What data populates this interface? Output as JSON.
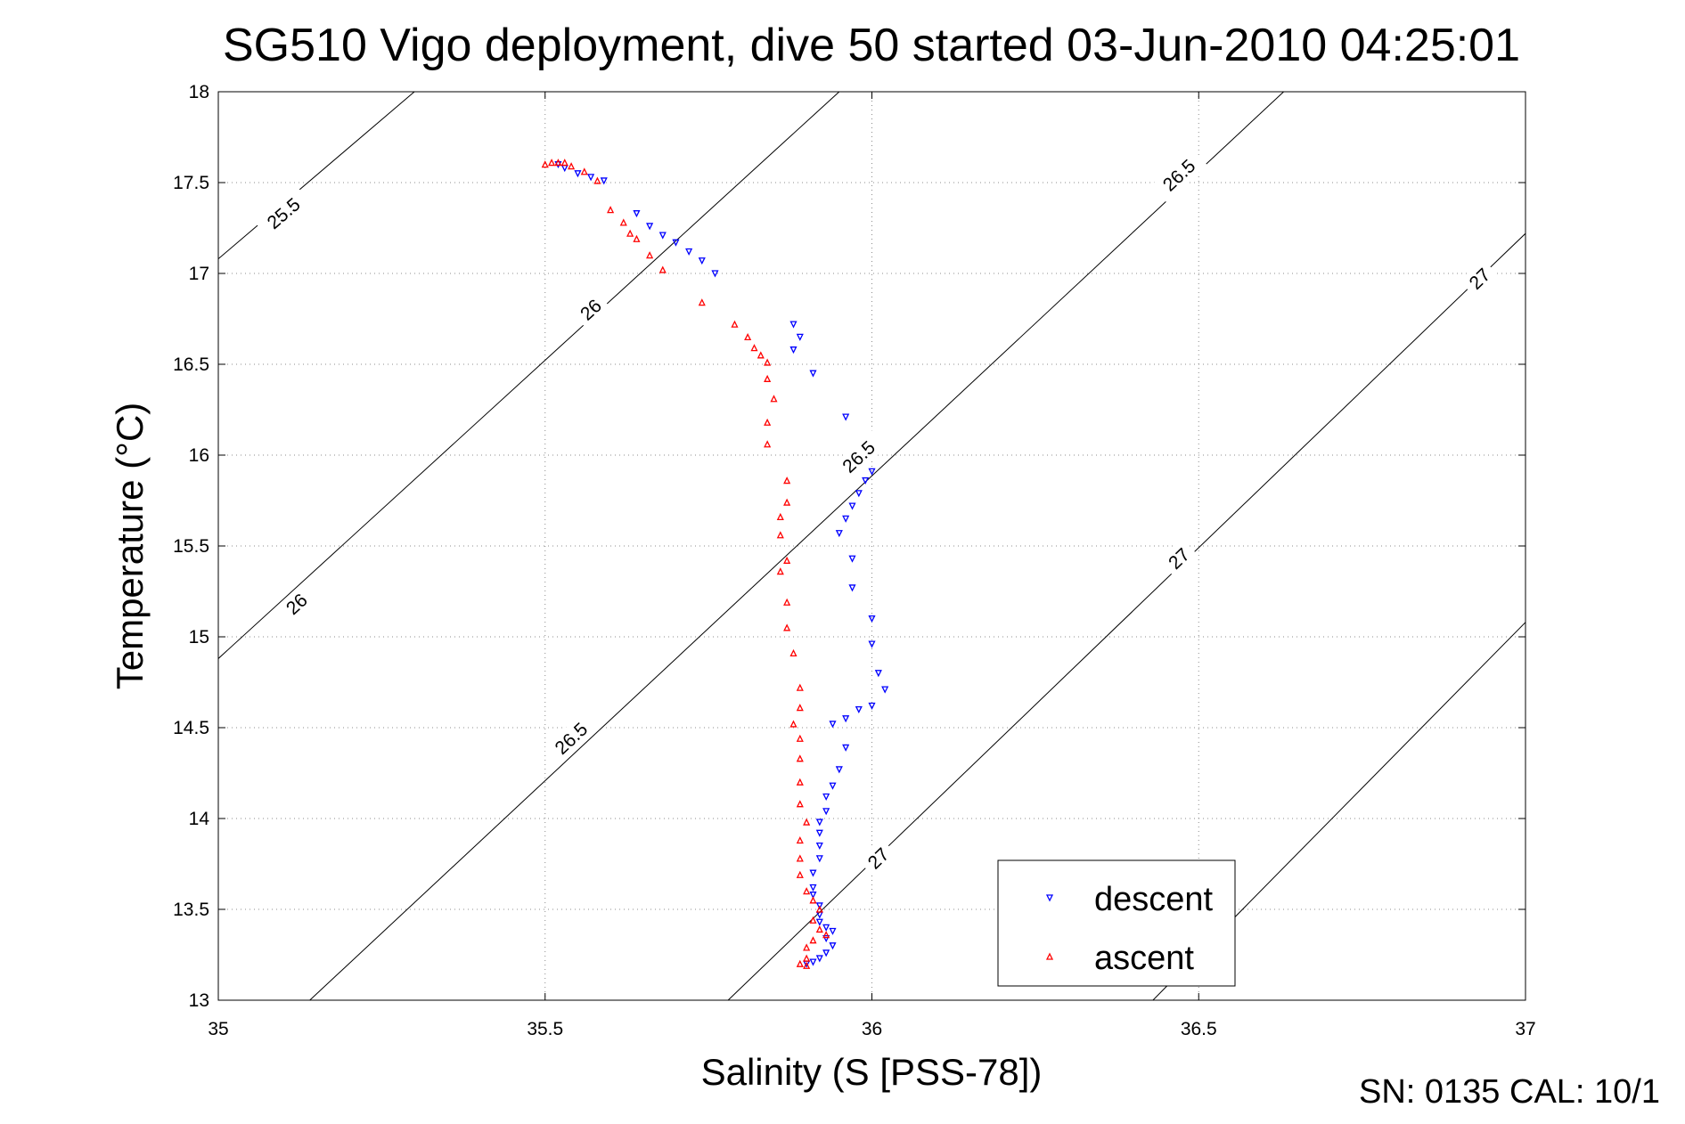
{
  "chart_data": {
    "type": "scatter",
    "title": "SG510 Vigo deployment, dive 50 started 03-Jun-2010 04:25:01",
    "xlabel": "Salinity (S [PSS-78])",
    "ylabel": "Temperature (°C)",
    "xlim": [
      35,
      37
    ],
    "ylim": [
      13,
      18
    ],
    "xticks": [
      "35",
      "35.5",
      "36",
      "36.5",
      "37"
    ],
    "yticks": [
      "13",
      "13.5",
      "14",
      "14.5",
      "15",
      "15.5",
      "16",
      "16.5",
      "17",
      "17.5",
      "18"
    ],
    "grid": true,
    "legend_position": "bottom-right",
    "series": [
      {
        "name": "descent",
        "color": "#0000ff",
        "marker": "triangle-down",
        "points": [
          [
            35.52,
            17.6
          ],
          [
            35.53,
            17.58
          ],
          [
            35.55,
            17.55
          ],
          [
            35.57,
            17.53
          ],
          [
            35.59,
            17.51
          ],
          [
            35.64,
            17.33
          ],
          [
            35.66,
            17.26
          ],
          [
            35.68,
            17.21
          ],
          [
            35.7,
            17.17
          ],
          [
            35.72,
            17.12
          ],
          [
            35.74,
            17.07
          ],
          [
            35.76,
            17.0
          ],
          [
            35.88,
            16.72
          ],
          [
            35.89,
            16.65
          ],
          [
            35.88,
            16.58
          ],
          [
            35.91,
            16.45
          ],
          [
            35.96,
            16.21
          ],
          [
            36.0,
            15.91
          ],
          [
            35.99,
            15.86
          ],
          [
            35.98,
            15.79
          ],
          [
            35.97,
            15.72
          ],
          [
            35.96,
            15.65
          ],
          [
            35.95,
            15.57
          ],
          [
            35.97,
            15.43
          ],
          [
            35.97,
            15.27
          ],
          [
            36.0,
            15.1
          ],
          [
            36.0,
            14.96
          ],
          [
            36.01,
            14.8
          ],
          [
            36.02,
            14.71
          ],
          [
            36.0,
            14.62
          ],
          [
            35.98,
            14.6
          ],
          [
            35.96,
            14.55
          ],
          [
            35.94,
            14.52
          ],
          [
            35.96,
            14.39
          ],
          [
            35.95,
            14.27
          ],
          [
            35.94,
            14.18
          ],
          [
            35.93,
            14.12
          ],
          [
            35.93,
            14.04
          ],
          [
            35.92,
            13.98
          ],
          [
            35.92,
            13.92
          ],
          [
            35.92,
            13.85
          ],
          [
            35.92,
            13.78
          ],
          [
            35.91,
            13.7
          ],
          [
            35.91,
            13.62
          ],
          [
            35.91,
            13.58
          ],
          [
            35.92,
            13.52
          ],
          [
            35.92,
            13.47
          ],
          [
            35.92,
            13.43
          ],
          [
            35.93,
            13.4
          ],
          [
            35.94,
            13.38
          ],
          [
            35.93,
            13.34
          ],
          [
            35.94,
            13.3
          ],
          [
            35.93,
            13.26
          ],
          [
            35.92,
            13.23
          ],
          [
            35.91,
            13.21
          ],
          [
            35.9,
            13.2
          ]
        ]
      },
      {
        "name": "ascent",
        "color": "#ff0000",
        "marker": "triangle-up",
        "points": [
          [
            35.5,
            17.6
          ],
          [
            35.51,
            17.61
          ],
          [
            35.52,
            17.61
          ],
          [
            35.53,
            17.61
          ],
          [
            35.54,
            17.59
          ],
          [
            35.56,
            17.56
          ],
          [
            35.58,
            17.51
          ],
          [
            35.6,
            17.35
          ],
          [
            35.62,
            17.28
          ],
          [
            35.63,
            17.22
          ],
          [
            35.64,
            17.19
          ],
          [
            35.66,
            17.1
          ],
          [
            35.68,
            17.02
          ],
          [
            35.74,
            16.84
          ],
          [
            35.79,
            16.72
          ],
          [
            35.81,
            16.65
          ],
          [
            35.82,
            16.59
          ],
          [
            35.83,
            16.55
          ],
          [
            35.84,
            16.51
          ],
          [
            35.84,
            16.42
          ],
          [
            35.85,
            16.31
          ],
          [
            35.84,
            16.18
          ],
          [
            35.84,
            16.06
          ],
          [
            35.87,
            15.86
          ],
          [
            35.87,
            15.74
          ],
          [
            35.86,
            15.66
          ],
          [
            35.86,
            15.56
          ],
          [
            35.87,
            15.42
          ],
          [
            35.86,
            15.36
          ],
          [
            35.87,
            15.19
          ],
          [
            35.87,
            15.05
          ],
          [
            35.88,
            14.91
          ],
          [
            35.89,
            14.72
          ],
          [
            35.89,
            14.61
          ],
          [
            35.88,
            14.52
          ],
          [
            35.89,
            14.44
          ],
          [
            35.89,
            14.33
          ],
          [
            35.89,
            14.2
          ],
          [
            35.89,
            14.08
          ],
          [
            35.9,
            13.98
          ],
          [
            35.89,
            13.88
          ],
          [
            35.89,
            13.78
          ],
          [
            35.89,
            13.69
          ],
          [
            35.9,
            13.6
          ],
          [
            35.91,
            13.55
          ],
          [
            35.92,
            13.5
          ],
          [
            35.91,
            13.44
          ],
          [
            35.92,
            13.39
          ],
          [
            35.93,
            13.36
          ],
          [
            35.91,
            13.33
          ],
          [
            35.9,
            13.29
          ],
          [
            35.9,
            13.23
          ],
          [
            35.89,
            13.2
          ],
          [
            35.9,
            13.19
          ]
        ]
      }
    ],
    "isopycnals": [
      {
        "label": "25.5",
        "points": [
          [
            35.0,
            17.08
          ],
          [
            35.3,
            18.0
          ]
        ],
        "label_at": [
          35.1,
          17.33
        ]
      },
      {
        "label": "26",
        "points": [
          [
            35.0,
            14.88
          ],
          [
            35.95,
            18.0
          ]
        ],
        "label_at": [
          35.12,
          15.18
        ]
      },
      {
        "label": "26",
        "points": [
          [
            35.0,
            14.88
          ],
          [
            35.95,
            18.0
          ]
        ],
        "label_at": [
          35.57,
          16.8
        ]
      },
      {
        "label": "26.5",
        "points": [
          [
            35.14,
            13.0
          ],
          [
            36.63,
            18.0
          ]
        ],
        "label_at": [
          35.54,
          14.44
        ]
      },
      {
        "label": "26.5",
        "points": [
          [
            35.14,
            13.0
          ],
          [
            36.63,
            18.0
          ]
        ],
        "label_at": [
          35.98,
          15.99
        ]
      },
      {
        "label": "26.5",
        "points": [
          [
            35.14,
            13.0
          ],
          [
            36.63,
            18.0
          ]
        ],
        "label_at": [
          36.47,
          17.54
        ]
      },
      {
        "label": "27",
        "points": [
          [
            35.78,
            13.0
          ],
          [
            37.0,
            17.22
          ]
        ],
        "label_at": [
          36.01,
          13.78
        ]
      },
      {
        "label": "27",
        "points": [
          [
            35.78,
            13.0
          ],
          [
            37.0,
            17.22
          ]
        ],
        "label_at": [
          36.47,
          15.43
        ]
      },
      {
        "label": "27",
        "points": [
          [
            35.78,
            13.0
          ],
          [
            37.0,
            17.22
          ]
        ],
        "label_at": [
          36.93,
          16.97
        ]
      },
      {
        "label": "",
        "points": [
          [
            36.43,
            13.0
          ],
          [
            37.0,
            15.08
          ]
        ],
        "label_at": null
      }
    ]
  },
  "footer_text": "SN: 0135  CAL: 10/1"
}
